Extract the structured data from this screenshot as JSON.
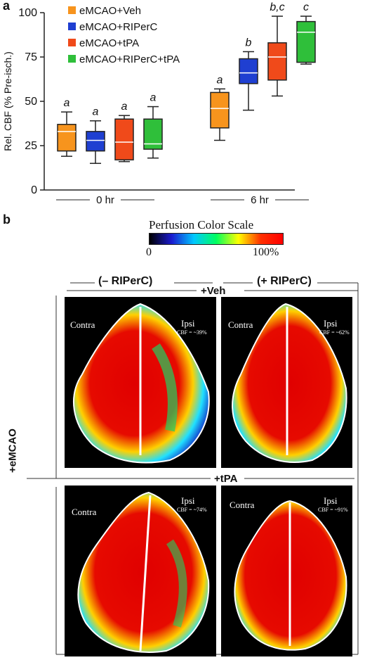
{
  "panel_a_letter": "a",
  "panel_b_letter": "b",
  "colors": {
    "veh": "#f7941d",
    "riperc": "#1f3fd1",
    "tpa": "#f04a1a",
    "riperc_tpa": "#2fbf3a"
  },
  "chart_data": {
    "type": "box",
    "ylabel": "Rel. CBF (% Pre-isch.)",
    "ylim": [
      0,
      100
    ],
    "yticks": [
      0,
      25,
      50,
      75,
      100
    ],
    "groups": [
      "0 hr",
      "6 hr"
    ],
    "series": [
      {
        "name": "eMCAO+Veh",
        "color": "#f7941d",
        "boxes": [
          {
            "group": "0 hr",
            "min": 19,
            "q1": 22,
            "median": 33,
            "q3": 37,
            "max": 44,
            "sig": "a"
          },
          {
            "group": "6 hr",
            "min": 28,
            "q1": 35,
            "median": 46,
            "q3": 55,
            "max": 57,
            "sig": "a"
          }
        ]
      },
      {
        "name": "eMCAO+RIPerC",
        "color": "#1f3fd1",
        "boxes": [
          {
            "group": "0 hr",
            "min": 15,
            "q1": 22,
            "median": 28,
            "q3": 33,
            "max": 39,
            "sig": "a"
          },
          {
            "group": "6 hr",
            "min": 45,
            "q1": 60,
            "median": 66,
            "q3": 74,
            "max": 78,
            "sig": "b"
          }
        ]
      },
      {
        "name": "eMCAO+tPA",
        "color": "#f04a1a",
        "boxes": [
          {
            "group": "0 hr",
            "min": 16,
            "q1": 17,
            "median": 27,
            "q3": 40,
            "max": 42,
            "sig": "a"
          },
          {
            "group": "6 hr",
            "min": 53,
            "q1": 62,
            "median": 75,
            "q3": 83,
            "max": 98,
            "sig": "b,c"
          }
        ]
      },
      {
        "name": "eMCAO+RIPerC+tPA",
        "color": "#2fbf3a",
        "boxes": [
          {
            "group": "0 hr",
            "min": 18,
            "q1": 23,
            "median": 26,
            "q3": 40,
            "max": 47,
            "sig": "a"
          },
          {
            "group": "6 hr",
            "min": 71,
            "q1": 72,
            "median": 89,
            "q3": 95,
            "max": 98,
            "sig": "c"
          }
        ]
      }
    ]
  },
  "perfusion_scale": {
    "title": "Perfusion Color Scale",
    "min_label": "0",
    "max_label": "100%",
    "stops": [
      "#000000",
      "#1b1bd0",
      "#00c8ff",
      "#00ff60",
      "#ffff00",
      "#ff3000",
      "#ff0000"
    ]
  },
  "panel_b": {
    "col_minus": "(– RIPerC)",
    "col_plus": "(+ RIPerC)",
    "row_veh": "+Veh",
    "row_tpa": "+tPA",
    "side": "+eMCAO",
    "images": [
      {
        "contra": "Contra",
        "ipsi": "Ipsi",
        "cbf": "CBF = ~39%"
      },
      {
        "contra": "Contra",
        "ipsi": "Ipsi",
        "cbf": "CBF = ~62%"
      },
      {
        "contra": "Contra",
        "ipsi": "Ipsi",
        "cbf": "CBF = ~74%"
      },
      {
        "contra": "Contra",
        "ipsi": "Ipsi",
        "cbf": "CBF = ~91%"
      }
    ]
  }
}
